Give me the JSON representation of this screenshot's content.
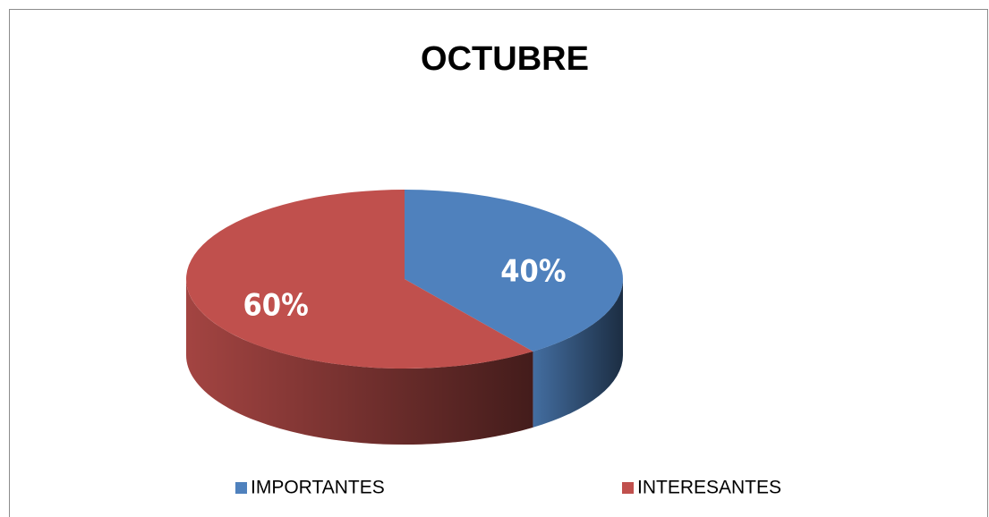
{
  "chart_data": {
    "type": "pie",
    "title": "OCTUBRE",
    "categories": [
      "IMPORTANTES",
      "INTERESANTES"
    ],
    "values": [
      40,
      60
    ],
    "value_labels": [
      "40%",
      "60%"
    ],
    "colors": [
      "#4f81bd",
      "#c0504d"
    ],
    "legend": "bottom"
  }
}
